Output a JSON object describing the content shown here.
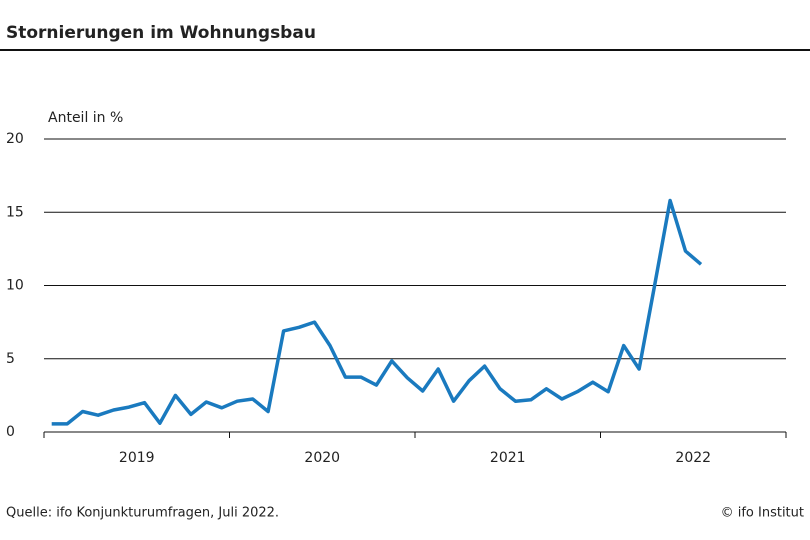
{
  "chart_data": {
    "type": "line",
    "title": "Stornierungen im Wohnungsbau",
    "y_label": "Anteil in %",
    "source": "Quelle: ifo Konjunkturumfragen, Juli 2022.",
    "copyright": "© ifo Institut",
    "year_labels": [
      "2019",
      "2020",
      "2021",
      "2022"
    ],
    "values": [
      0.55,
      0.55,
      1.4,
      1.15,
      1.5,
      1.7,
      2.0,
      0.6,
      2.5,
      1.2,
      2.05,
      1.65,
      2.1,
      2.25,
      1.4,
      6.9,
      7.15,
      7.5,
      5.9,
      3.75,
      3.75,
      3.2,
      4.85,
      3.7,
      2.8,
      4.3,
      2.1,
      3.5,
      4.5,
      2.95,
      2.1,
      2.2,
      2.95,
      2.25,
      2.75,
      3.4,
      2.75,
      5.9,
      4.3,
      10,
      15.8,
      12.35,
      11.45
    ],
    "color": "#1a7abf",
    "ylim": [
      0,
      20
    ],
    "yticks": [
      0,
      5,
      10,
      15,
      20
    ],
    "grid": true
  }
}
